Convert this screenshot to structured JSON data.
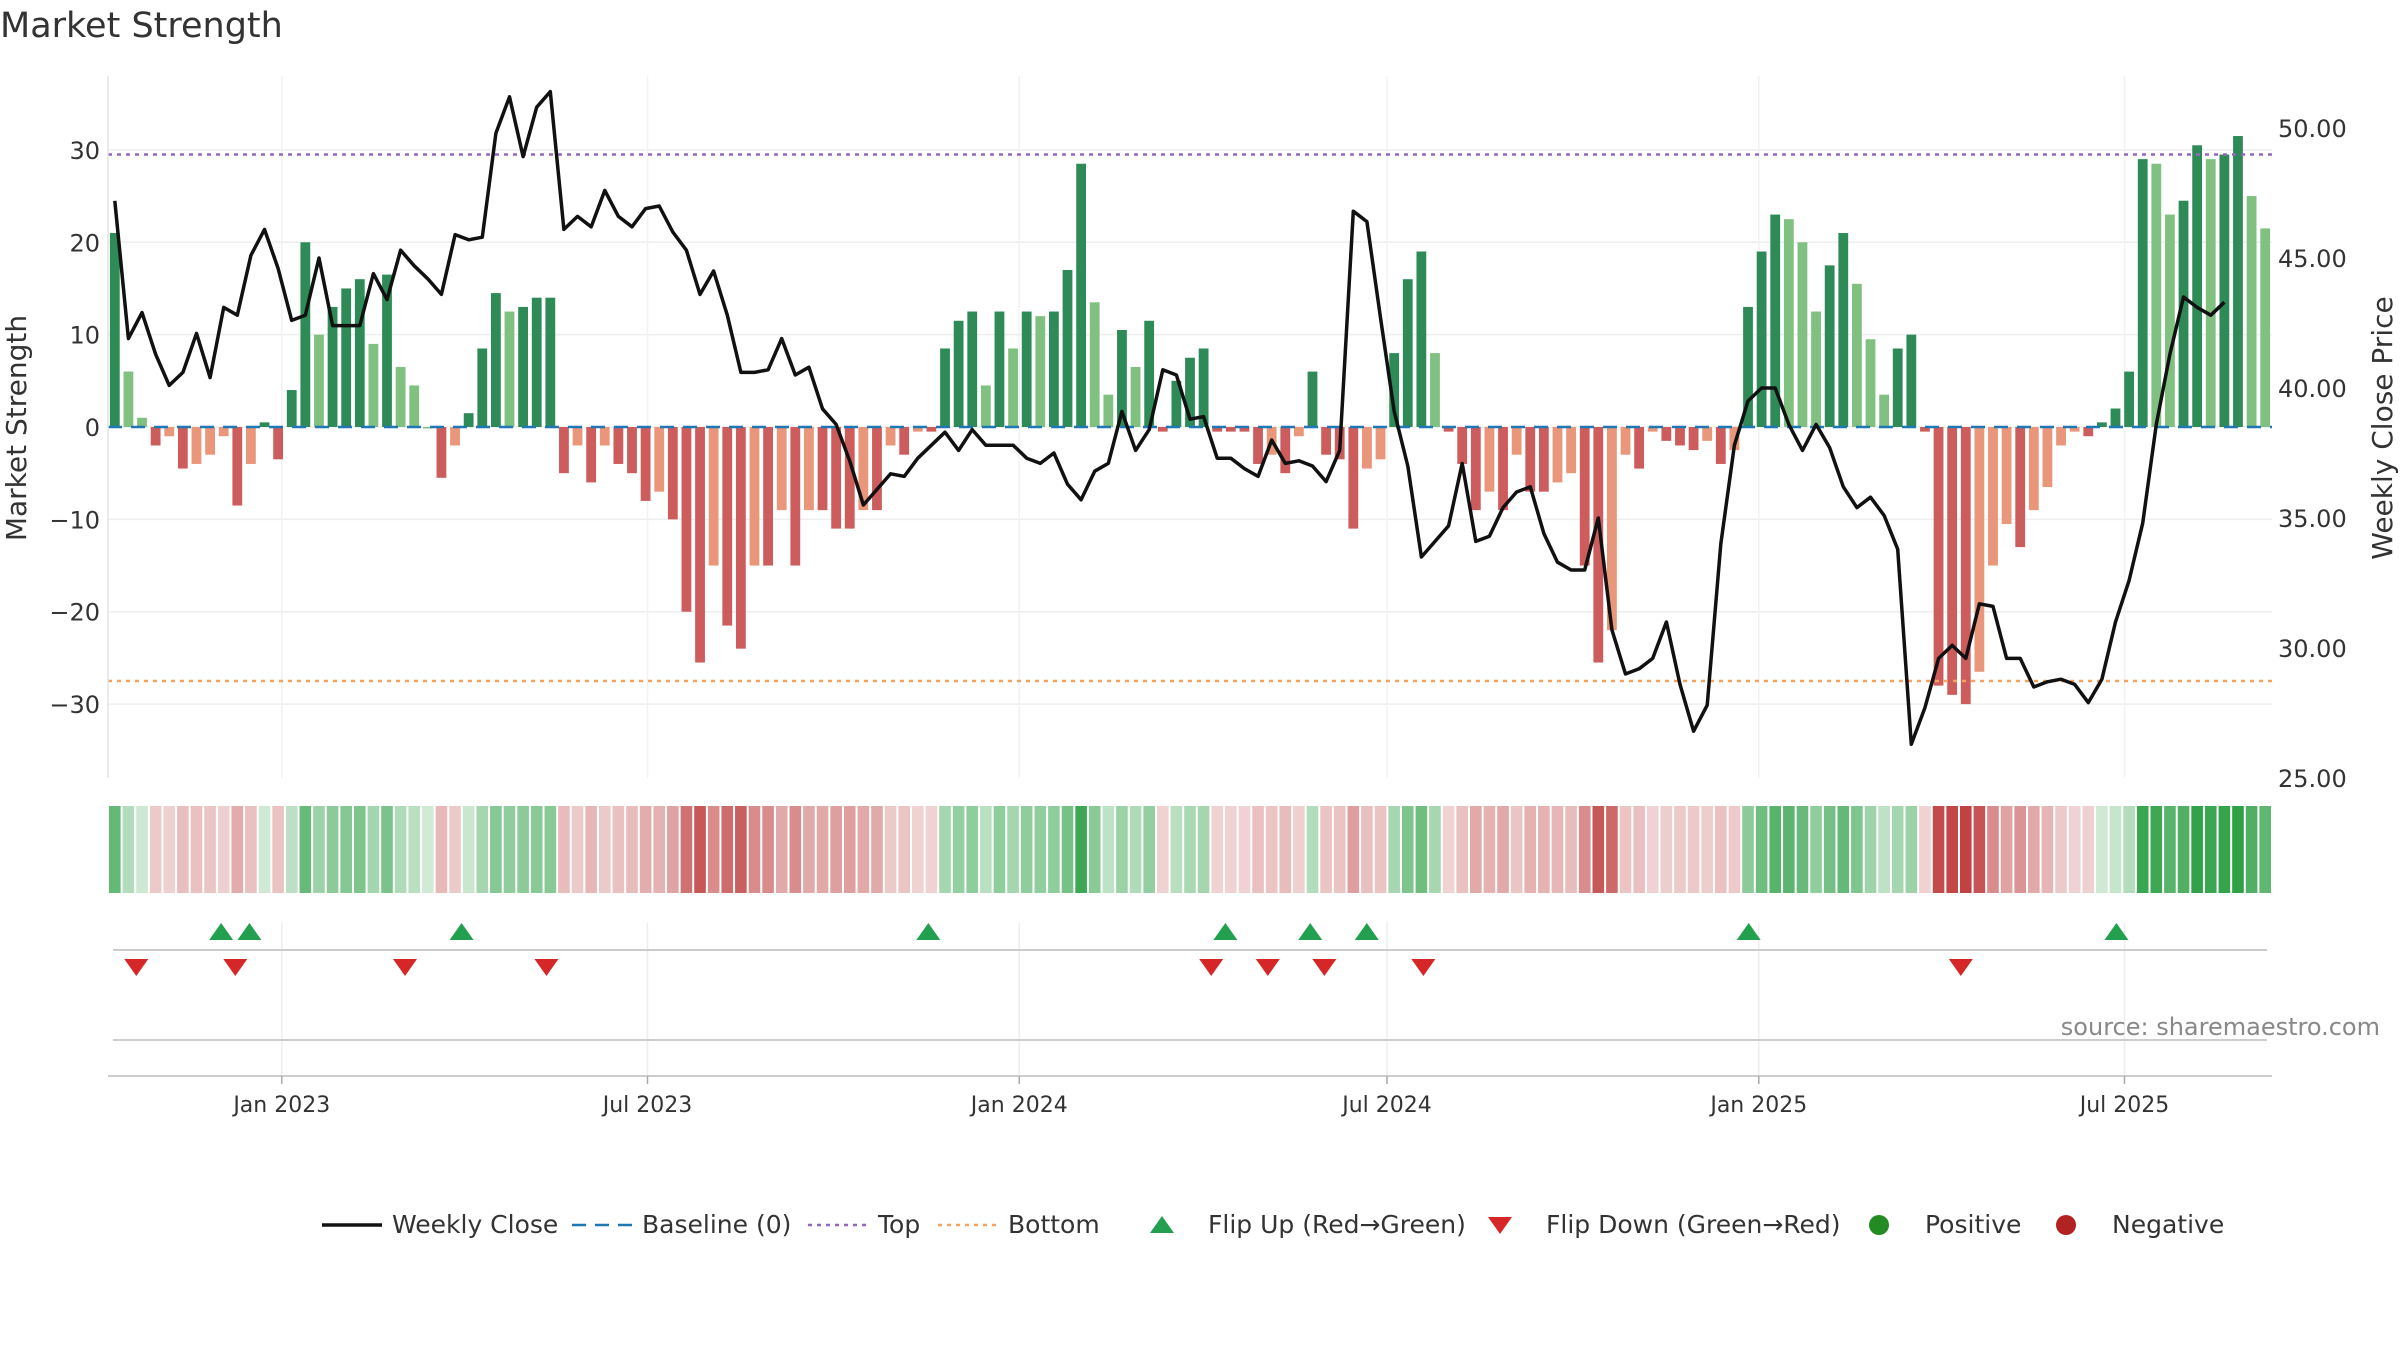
{
  "title": "Market Strength",
  "source": "source: sharemaestro.com",
  "colors": {
    "pos_dark": "#2e8b57",
    "pos_light": "#80c080",
    "neg_dark": "#cd5c5c",
    "neg_light": "#e9967a",
    "price_line": "#111111",
    "baseline": "#1f77b4",
    "top_line": "#9467bd",
    "bottom_line": "#f4a460",
    "flip_up": "#22a050",
    "flip_down": "#d62728",
    "positive": "#228b22",
    "negative": "#b22222"
  },
  "chart_data": {
    "type": "bar+line",
    "title": "Market Strength",
    "x_range": [
      "2022-10-07",
      "2025-09-12"
    ],
    "x_ticks": [
      {
        "date": "2023-01-01",
        "label": "Jan 2023"
      },
      {
        "date": "2023-07-01",
        "label": "Jul 2023"
      },
      {
        "date": "2024-01-01",
        "label": "Jan 2024"
      },
      {
        "date": "2024-07-01",
        "label": "Jul 2024"
      },
      {
        "date": "2025-01-01",
        "label": "Jan 2025"
      },
      {
        "date": "2025-07-01",
        "label": "Jul 2025"
      }
    ],
    "left_axis": {
      "label": "Market Strength",
      "ylim": [
        -38,
        38
      ],
      "ticks": [
        30,
        20,
        10,
        0,
        -10,
        -20,
        -30
      ],
      "tick_labels": [
        "30",
        "20",
        "10",
        "0",
        "−10",
        "−20",
        "−30"
      ]
    },
    "right_axis": {
      "label": "Weekly Close Price",
      "ylim": [
        25,
        52
      ],
      "ticks": [
        50,
        45,
        40,
        35,
        30,
        25
      ],
      "tick_labels": [
        "50.00",
        "45.00",
        "40.00",
        "35.00",
        "30.00",
        "25.00"
      ]
    },
    "top_threshold": 29.5,
    "bottom_threshold": -27.5,
    "series": [
      {
        "name": "Market Strength",
        "axis": "left",
        "values": [
          21,
          6,
          1,
          -2,
          -1,
          -4.5,
          -4,
          -3,
          -1,
          -8.5,
          -4,
          0.5,
          -3.5,
          4,
          20,
          10,
          13,
          15,
          16,
          9,
          16.5,
          6.5,
          4.5,
          0,
          -5.5,
          -2,
          1.5,
          8.5,
          14.5,
          12.5,
          13,
          14,
          14,
          -5,
          -2,
          -6,
          -2,
          -4,
          -5,
          -8,
          -7,
          -10,
          -20,
          -25.5,
          -15,
          -21.5,
          -24,
          -15,
          -15,
          -9,
          -15,
          -9,
          -9,
          -11,
          -11,
          -9,
          -9,
          -2,
          -3,
          -0.5,
          -0.5,
          8.5,
          11.5,
          12.5,
          4.5,
          12.5,
          8.5,
          12.5,
          12,
          12.5,
          17,
          28.5,
          13.5,
          3.5,
          10.5,
          6.5,
          11.5,
          -0.5,
          5,
          7.5,
          8.5,
          -0.5,
          -0.5,
          -0.5,
          -4,
          -3,
          -5,
          -1,
          6,
          -3,
          -3.5,
          -11,
          -4.5,
          -3.5,
          8,
          16,
          19,
          8,
          -0.5,
          -4,
          -9,
          -7,
          -9,
          -3,
          -7,
          -7,
          -6,
          -5,
          -15,
          -25.5,
          -22,
          -3,
          -4.5,
          -0.5,
          -1.5,
          -2,
          -2.5,
          -1.5,
          -4,
          -2.5,
          13,
          19,
          23,
          22.5,
          20,
          12.5,
          17.5,
          21,
          15.5,
          9.5,
          3.5,
          8.5,
          10,
          -0.5,
          -28,
          -29,
          -30,
          -26.5,
          -15,
          -10.5,
          -13,
          -9,
          -6.5,
          -2,
          -0.5,
          -1,
          0.5,
          2,
          6,
          29,
          28.5,
          23,
          24.5,
          30.5,
          29,
          29.5,
          31.5,
          25,
          21.5
        ]
      },
      {
        "name": "Weekly Close",
        "axis": "right",
        "values": [
          47.2,
          41.9,
          42.9,
          41.3,
          40.1,
          40.6,
          42.1,
          40.4,
          43.1,
          42.8,
          45.1,
          46.1,
          44.6,
          42.6,
          42.8,
          45.0,
          42.4,
          42.4,
          42.4,
          44.4,
          43.4,
          45.3,
          44.7,
          44.2,
          43.6,
          45.9,
          45.7,
          45.8,
          49.8,
          51.2,
          48.9,
          50.8,
          51.4,
          46.1,
          46.6,
          46.2,
          47.6,
          46.6,
          46.2,
          46.9,
          47.0,
          46.0,
          45.3,
          43.6,
          44.5,
          42.8,
          40.6,
          40.6,
          40.7,
          41.9,
          40.5,
          40.8,
          39.2,
          38.6,
          37.2,
          35.5,
          36.1,
          36.7,
          36.6,
          37.3,
          37.8,
          38.3,
          37.6,
          38.4,
          37.8,
          37.8,
          37.8,
          37.3,
          37.1,
          37.5,
          36.3,
          35.7,
          36.8,
          37.1,
          39.1,
          37.6,
          38.4,
          40.7,
          40.5,
          38.8,
          38.9,
          37.3,
          37.3,
          36.9,
          36.6,
          38.0,
          37.1,
          37.2,
          37.0,
          36.4,
          37.6,
          46.8,
          46.4,
          42.7,
          39.1,
          37.0,
          33.5,
          34.1,
          34.7,
          37.1,
          34.1,
          34.3,
          35.4,
          36.0,
          36.2,
          34.4,
          33.3,
          33.0,
          33.0,
          35.0,
          30.7,
          29.0,
          29.2,
          29.6,
          31.0,
          28.6,
          26.8,
          27.8,
          34.0,
          37.8,
          39.5,
          40.0,
          40.0,
          38.6,
          37.6,
          38.6,
          37.7,
          36.2,
          35.4,
          35.8,
          35.1,
          33.8,
          26.3,
          27.7,
          29.6,
          30.1,
          29.6,
          31.7,
          31.6,
          29.6,
          29.6,
          28.5,
          28.7,
          28.8,
          28.6,
          27.9,
          28.8,
          31.0,
          32.6,
          34.8,
          38.6,
          41.3,
          43.5,
          43.1,
          42.8,
          43.3
        ]
      }
    ],
    "strength_bar_rule": "values >= 0 drawn green (dark for strong, light for weakening); values < 0 drawn red",
    "regime_band": "color strip under the plot summarising each week's strength",
    "flip_up_dates": [
      "2022-12-02",
      "2022-12-16",
      "2023-03-31",
      "2023-11-17",
      "2024-04-12",
      "2024-05-24",
      "2024-06-21",
      "2024-12-27",
      "2025-06-27"
    ],
    "flip_down_dates": [
      "2022-10-21",
      "2022-12-09",
      "2023-03-03",
      "2023-05-12",
      "2024-04-05",
      "2024-05-03",
      "2024-05-31",
      "2024-07-19",
      "2025-04-11"
    ],
    "legend": [
      {
        "label": "Weekly Close",
        "kind": "line"
      },
      {
        "label": "Baseline (0)",
        "kind": "dash"
      },
      {
        "label": "Top",
        "kind": "dot-top"
      },
      {
        "label": "Bottom",
        "kind": "dot-bottom"
      },
      {
        "label": "Flip Up (Red→Green)",
        "kind": "tri-up"
      },
      {
        "label": "Flip Down (Green→Red)",
        "kind": "tri-down"
      },
      {
        "label": "Positive",
        "kind": "dot-pos"
      },
      {
        "label": "Negative",
        "kind": "dot-neg"
      }
    ],
    "legend_position": "bottom"
  }
}
